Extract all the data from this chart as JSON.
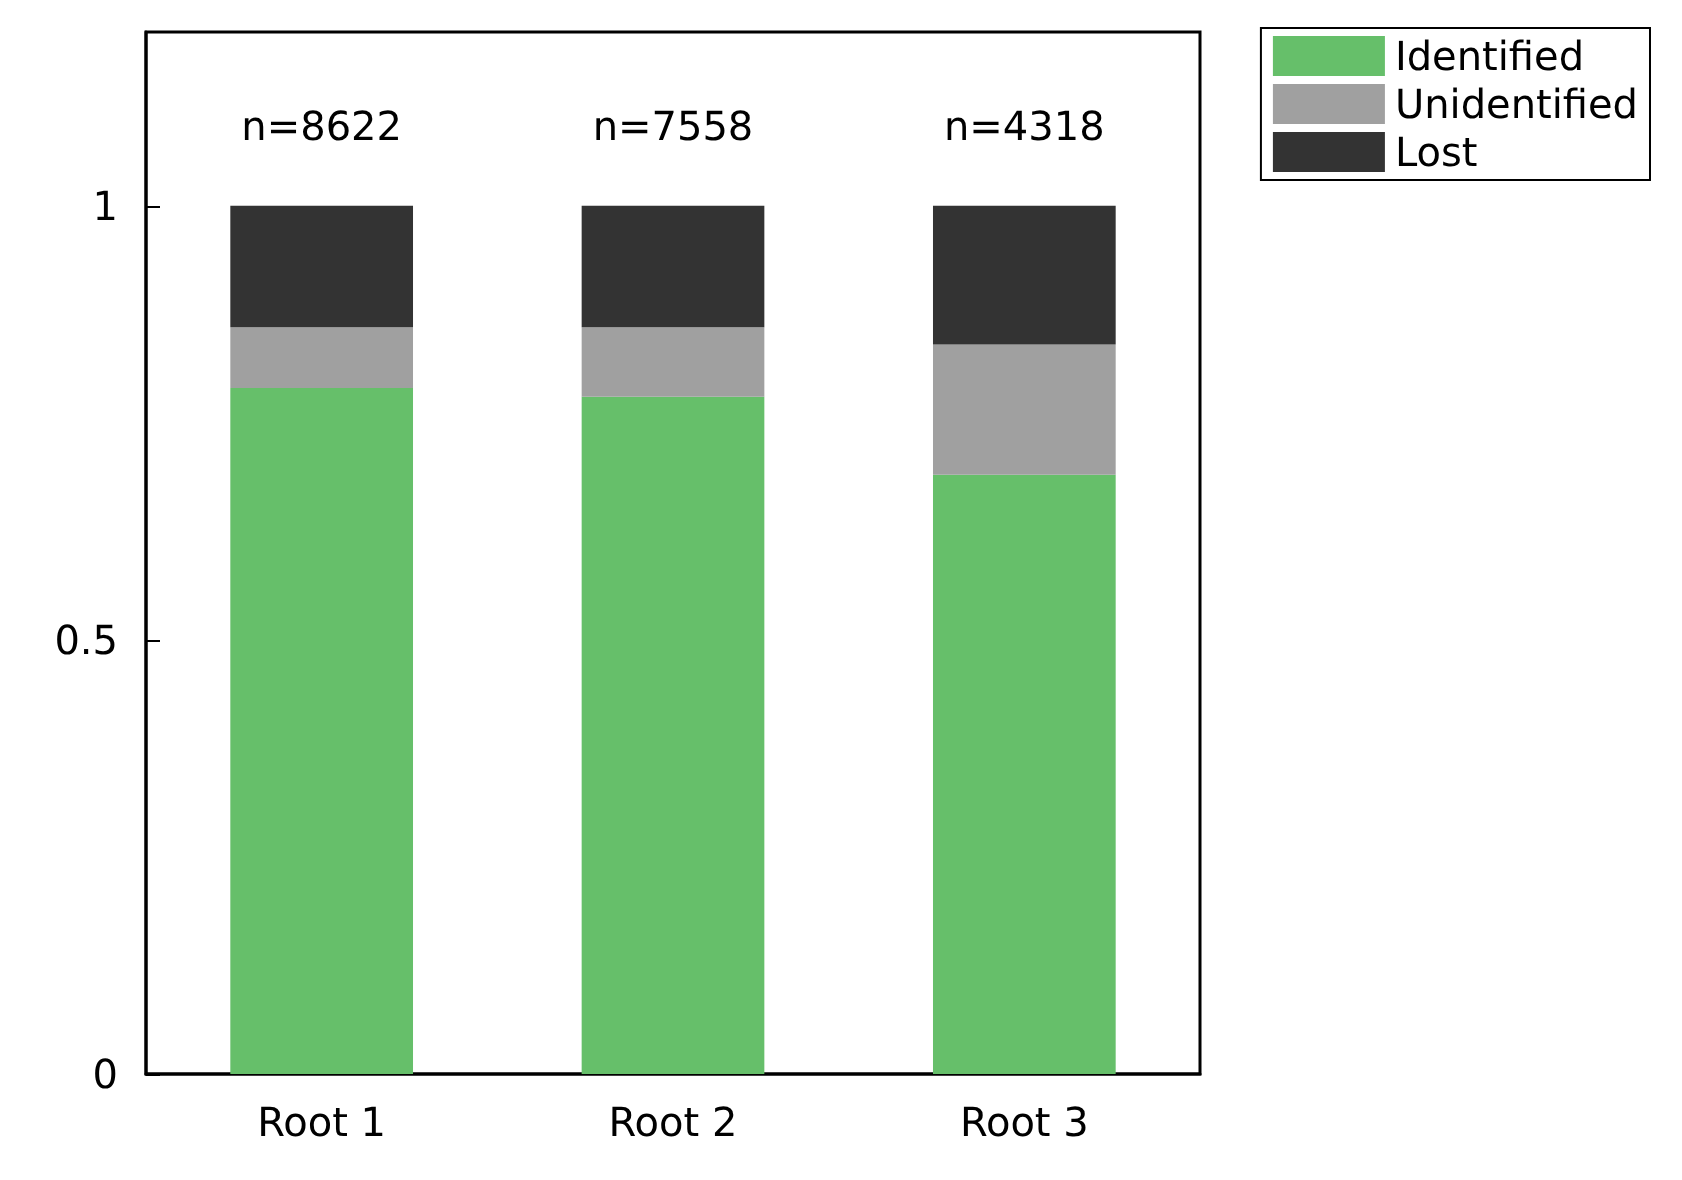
{
  "chart_data": {
    "type": "bar",
    "stacked": true,
    "categories": [
      "Root 1",
      "Root 2",
      "Root 3"
    ],
    "series": [
      {
        "name": "Identified",
        "color": "#66bf6a",
        "values": [
          0.79,
          0.78,
          0.69
        ]
      },
      {
        "name": "Unidentified",
        "color": "#a0a0a0",
        "values": [
          0.07,
          0.08,
          0.15
        ]
      },
      {
        "name": "Lost",
        "color": "#333333",
        "values": [
          0.14,
          0.14,
          0.16
        ]
      }
    ],
    "ylim": [
      0,
      1.2
    ],
    "yticks": [
      0,
      0.5,
      1
    ],
    "grid": false,
    "legend": "top right",
    "annotations": [
      "n=8622",
      "n=7558",
      "n=4318"
    ]
  }
}
